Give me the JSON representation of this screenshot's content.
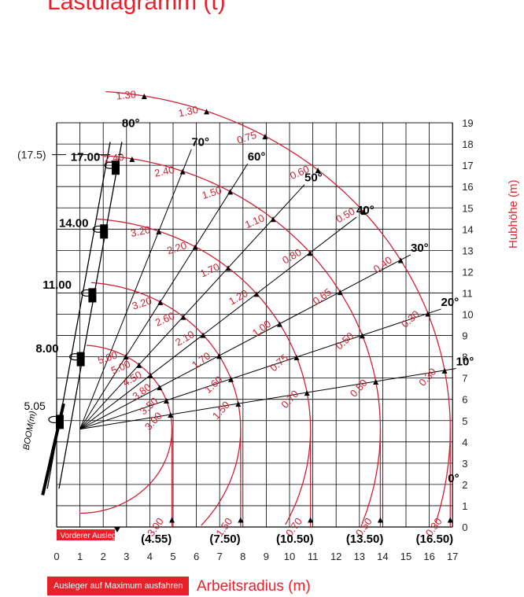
{
  "header": {
    "title": "Lastdiagramm (t)"
  },
  "right_axis_label": "Hubhöhe (m)",
  "bottom": {
    "button_label": "Ausleger auf Maximum ausfahren",
    "axis_label": "Arbeitsradius (m)"
  },
  "colors": {
    "accent": "#e8202a",
    "arc": "#cc2233",
    "grid": "#000000"
  },
  "chart": {
    "x_ticks": [
      "0",
      "1",
      "2",
      "3",
      "4",
      "5",
      "6",
      "7",
      "8",
      "9",
      "10",
      "11",
      "12",
      "13",
      "14",
      "15",
      "16",
      "17"
    ],
    "y_ticks": [
      "0",
      "1",
      "2",
      "3",
      "4",
      "5",
      "6",
      "7",
      "8",
      "9",
      "10",
      "11",
      "12",
      "13",
      "14",
      "15",
      "16",
      "17",
      "18",
      "19"
    ],
    "boom_lengths": [
      "5.05",
      "8.00",
      "11.00",
      "14.00",
      "17.00"
    ],
    "boom_label": "BOOM(m)",
    "max_height_label": "(17.5)",
    "front_label": "Vorderer Ausleger",
    "radius_labels": [
      "(4.55)",
      "(7.50)",
      "(10.50)",
      "(13.50)",
      "(16.50)"
    ],
    "angles": [
      "80°",
      "70°",
      "60°",
      "50°",
      "40°",
      "30°",
      "20°",
      "10°",
      "0°"
    ]
  },
  "chart_data": {
    "type": "diagram",
    "arcs": [
      {
        "boom": "5.05",
        "max_radius": "4.55",
        "loads": [
          "3.00",
          "3.00",
          "3.50",
          "3.80",
          "4.50",
          "5.00",
          "5.00",
          "",
          "",
          ""
        ]
      },
      {
        "boom": "8.00",
        "max_radius": "7.50",
        "loads": [
          "1.50",
          "1.50",
          "1.60",
          "1.70",
          "2.10",
          "2.60",
          "3.20",
          "",
          "",
          ""
        ]
      },
      {
        "boom": "11.00",
        "max_radius": "10.50",
        "loads": [
          "0.70",
          "0.70",
          "0.75",
          "1.00",
          "1.20",
          "1.70",
          "2.20",
          "3.20",
          "",
          ""
        ]
      },
      {
        "boom": "14.00",
        "max_radius": "13.50",
        "loads": [
          "0.50",
          "0.50",
          "0.50",
          "0.65",
          "0.80",
          "1.10",
          "1.50",
          "2.40",
          "2.40",
          ""
        ]
      },
      {
        "boom": "17.00",
        "max_radius": "16.50",
        "loads": [
          "0.30",
          "0.30",
          "0.30",
          "0.40",
          "0.50",
          "0.60",
          "0.75",
          "1.30",
          "1.30",
          ""
        ]
      }
    ]
  }
}
